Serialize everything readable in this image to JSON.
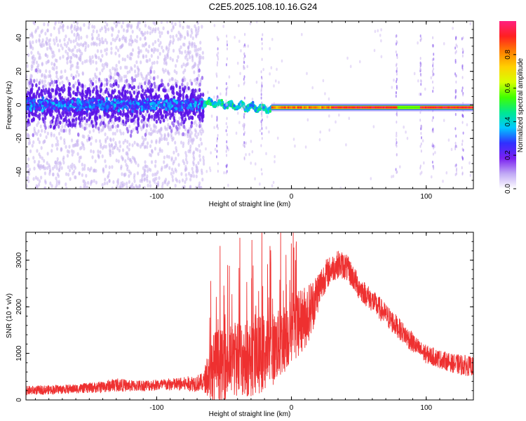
{
  "title": "C2E5.2025.108.10.16.G24",
  "colors": {
    "snr_line": "#ee3030",
    "axis": "#000000",
    "scatter_light": "#c9b4f0",
    "scatter_dark": "#5a12e8"
  },
  "chart_data": [
    {
      "type": "heatmap",
      "title": "C2E5.2025.108.10.16.G24",
      "xlabel": "Height of straight line (km)",
      "ylabel": "Frequency (Hz)",
      "xlim": [
        -197,
        135
      ],
      "ylim": [
        -50,
        50
      ],
      "x_ticks": [
        -100,
        0,
        100
      ],
      "x_tick_labels": [
        "-100",
        "0",
        "100"
      ],
      "y_ticks": [
        -40,
        -20,
        0,
        20,
        40
      ],
      "y_tick_labels": [
        "-40",
        "-20",
        "0",
        "20",
        "40"
      ],
      "grid": false,
      "colorbar": {
        "label": "Normalized spectral amplitude",
        "range": [
          0.0,
          1.0
        ],
        "ticks": [
          0.0,
          0.2,
          0.4,
          0.6,
          0.8
        ],
        "tick_labels": [
          "0.0",
          "0.2",
          "0.4",
          "0.6",
          "0.8"
        ],
        "colormap": [
          "#ffffff",
          "#c0a8f5",
          "#7a20f0",
          "#3030ff",
          "#00c8ff",
          "#00e890",
          "#40ff00",
          "#d8ff00",
          "#ffd000",
          "#ff8000",
          "#ff2020",
          "#ff2080"
        ]
      },
      "description_of_pattern": {
        "noise_region_x": [
          -197,
          -65
        ],
        "noise_freq_spread_hz": 50,
        "transition_x": [
          -65,
          -15
        ],
        "carrier_x": [
          -15,
          135
        ],
        "carrier_freq_hz": -1.5,
        "carrier_amplitude": 0.95,
        "vertical_streaks_x": [
          -55,
          -48,
          -35,
          -22,
          78,
          96,
          105,
          122,
          127
        ]
      }
    },
    {
      "type": "line",
      "xlabel": "Height of straight line (km)",
      "ylabel": "SNR (10 * v/v)",
      "xlim": [
        -197,
        135
      ],
      "ylim": [
        0,
        3600
      ],
      "x_ticks": [
        -100,
        0,
        100
      ],
      "x_tick_labels": [
        "-100",
        "0",
        "100"
      ],
      "y_ticks": [
        0,
        1000,
        2000,
        3000
      ],
      "y_tick_labels": [
        "0",
        "1000",
        "2000",
        "3000"
      ],
      "grid": false,
      "envelope": {
        "x": [
          -197,
          -180,
          -160,
          -140,
          -130,
          -120,
          -100,
          -80,
          -65,
          -60,
          -55,
          -50,
          -45,
          -40,
          -35,
          -30,
          -25,
          -20,
          -15,
          -10,
          -5,
          0,
          5,
          10,
          15,
          20,
          25,
          30,
          35,
          40,
          45,
          50,
          55,
          60,
          65,
          70,
          75,
          80,
          85,
          90,
          95,
          100,
          105,
          110,
          115,
          120,
          125,
          130,
          135
        ],
        "base": [
          200,
          220,
          240,
          280,
          330,
          300,
          320,
          340,
          380,
          700,
          850,
          800,
          900,
          1000,
          950,
          950,
          1050,
          1100,
          1150,
          1250,
          1400,
          1550,
          1700,
          1850,
          2050,
          2400,
          2700,
          2850,
          2950,
          2900,
          2700,
          2450,
          2300,
          2150,
          2000,
          1850,
          1700,
          1550,
          1400,
          1250,
          1100,
          1000,
          950,
          900,
          850,
          800,
          780,
          760,
          740
        ],
        "spread": [
          200,
          200,
          200,
          250,
          300,
          250,
          250,
          300,
          400,
          1400,
          1600,
          1500,
          1600,
          1700,
          1600,
          1600,
          1700,
          1700,
          1600,
          1500,
          1500,
          1400,
          1400,
          1400,
          1200,
          900,
          700,
          600,
          600,
          600,
          550,
          550,
          500,
          500,
          500,
          500,
          500,
          450,
          450,
          450,
          400,
          400,
          400,
          400,
          400,
          400,
          450,
          450,
          400
        ]
      }
    }
  ]
}
